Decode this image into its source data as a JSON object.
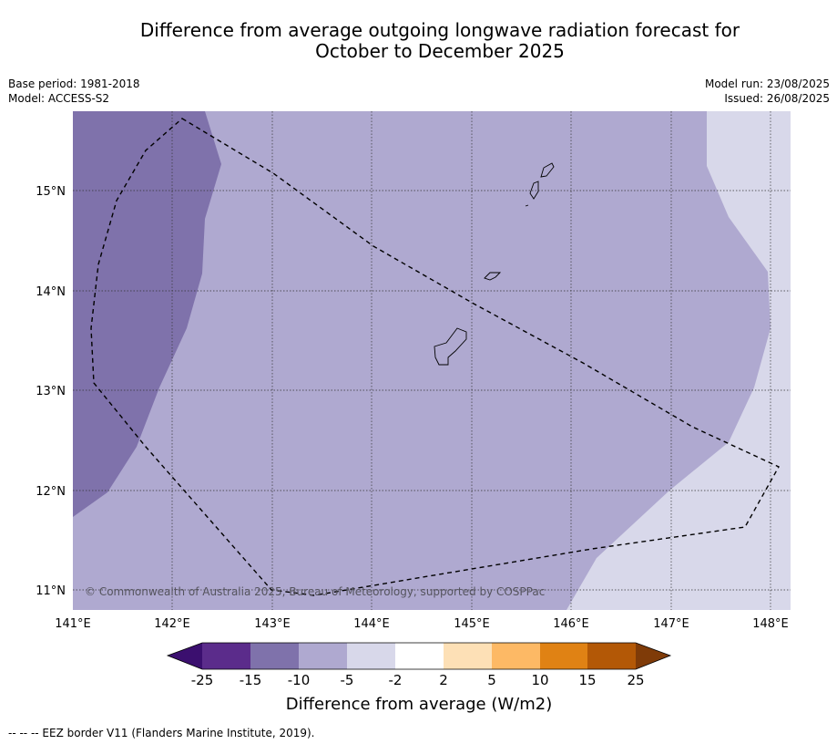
{
  "title_line1": "Difference from average outgoing longwave radiation forecast for",
  "title_line2": "October to December 2025",
  "meta_left": {
    "base_period": "Base period: 1981-2018",
    "model": "Model: ACCESS-S2"
  },
  "meta_right": {
    "model_run": "Model run: 23/08/2025",
    "issued": "Issued: 26/08/2025"
  },
  "map": {
    "extent": {
      "lon": [
        141,
        148.2
      ],
      "lat": [
        10.8,
        15.8
      ]
    },
    "lon_ticks": [
      "141°E",
      "142°E",
      "143°E",
      "144°E",
      "145°E",
      "146°E",
      "147°E",
      "148°E"
    ],
    "lat_ticks": [
      "11°N",
      "12°N",
      "13°N",
      "14°N",
      "15°N"
    ],
    "copyright": "© Commonwealth of Australia 2025, Bureau of Meteorology, supported by COSPPac",
    "colors": {
      "minus15_minus10": "#7f72ab",
      "minus10_minus5": "#afa9d0",
      "minus5_minus2": "#d8d8ea"
    }
  },
  "colorbar": {
    "ticks": [
      "-25",
      "-15",
      "-10",
      "-5",
      "-2",
      "2",
      "5",
      "10",
      "15",
      "25"
    ],
    "colors": [
      "#3b0f6f",
      "#5b2c8b",
      "#7f72ab",
      "#afa9d0",
      "#d8d8ea",
      "#ffffff",
      "#fde0b6",
      "#fdb965",
      "#e08214",
      "#b35806",
      "#7f3b08"
    ],
    "label": "Difference from average (W/m2)"
  },
  "footnote": "--  --  -- EEZ border V11 (Flanders Marine Institute, 2019)."
}
